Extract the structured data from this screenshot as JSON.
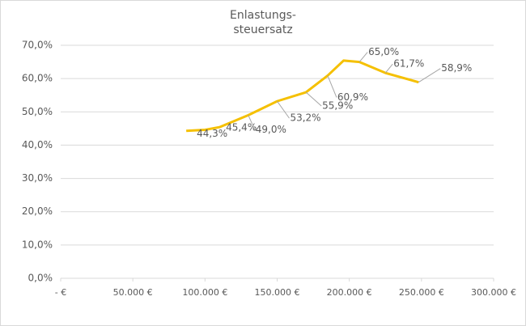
{
  "chart_data": {
    "type": "line",
    "title": [
      "Enlastungs-",
      "steuersatz"
    ],
    "x": [
      87000,
      100000,
      110000,
      130000,
      150000,
      170000,
      185000,
      196000,
      207000,
      225000,
      248000
    ],
    "series": [
      {
        "color": "#f5c000",
        "values": [
          44.3,
          44.6,
          45.4,
          49.0,
          53.2,
          55.9,
          60.9,
          65.4,
          65.0,
          61.7,
          58.9
        ],
        "value_labels": [
          "44,3%",
          null,
          "45,4%",
          "49,0%",
          "53,2%",
          "55,9%",
          "60,9%",
          null,
          "65,0%",
          "61,7%",
          "58,9%"
        ]
      }
    ],
    "xlim": [
      0,
      300000
    ],
    "xticks": [
      {
        "value": 0,
        "label": "-   €"
      },
      {
        "value": 50000,
        "label": "50.000 €"
      },
      {
        "value": 100000,
        "label": "100.000 €"
      },
      {
        "value": 150000,
        "label": "150.000 €"
      },
      {
        "value": 200000,
        "label": "200.000 €"
      },
      {
        "value": 250000,
        "label": "250.000 €"
      },
      {
        "value": 300000,
        "label": "300.000 €"
      }
    ],
    "ylim": [
      0,
      70
    ],
    "yticks": [
      {
        "value": 0,
        "label": "0,0%"
      },
      {
        "value": 10,
        "label": "10,0%"
      },
      {
        "value": 20,
        "label": "20,0%"
      },
      {
        "value": 30,
        "label": "30,0%"
      },
      {
        "value": 40,
        "label": "40,0%"
      },
      {
        "value": 50,
        "label": "50,0%"
      },
      {
        "value": 60,
        "label": "60,0%"
      },
      {
        "value": 70,
        "label": "70,0%"
      }
    ],
    "grid": true
  }
}
